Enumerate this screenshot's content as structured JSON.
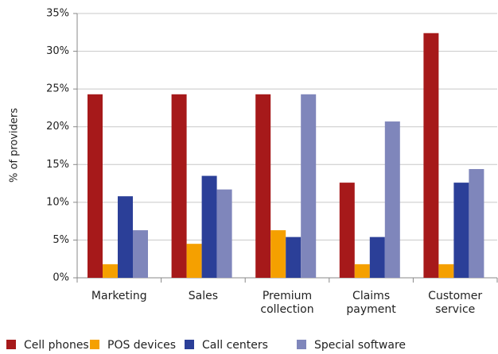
{
  "chart_data": {
    "type": "bar",
    "y_label": "% of providers",
    "categories": [
      "Marketing",
      "Sales",
      "Premium collection",
      "Claims payment",
      "Customer service"
    ],
    "series": [
      {
        "name": "Cell phones",
        "color": "#a6191a",
        "values": [
          24.3,
          24.3,
          24.3,
          12.6,
          32.4
        ]
      },
      {
        "name": "POS devices",
        "color": "#f5a000",
        "values": [
          1.8,
          4.5,
          6.3,
          1.8,
          1.8
        ]
      },
      {
        "name": "Call centers",
        "color": "#2b3f98",
        "values": [
          10.8,
          13.5,
          5.4,
          5.4,
          12.6
        ]
      },
      {
        "name": "Special software",
        "color": "#7f86bb",
        "values": [
          6.3,
          11.7,
          24.3,
          20.7,
          14.4
        ]
      }
    ],
    "ylim": [
      0,
      35
    ],
    "yticks": [
      {
        "value": 0,
        "label": "0%"
      },
      {
        "value": 5,
        "label": "5%"
      },
      {
        "value": 10,
        "label": "10%"
      },
      {
        "value": 15,
        "label": "15%"
      },
      {
        "value": 20,
        "label": "20%"
      },
      {
        "value": 25,
        "label": "25%"
      },
      {
        "value": 30,
        "label": "30%"
      },
      {
        "value": 35,
        "label": "35%"
      }
    ],
    "grid": true
  }
}
